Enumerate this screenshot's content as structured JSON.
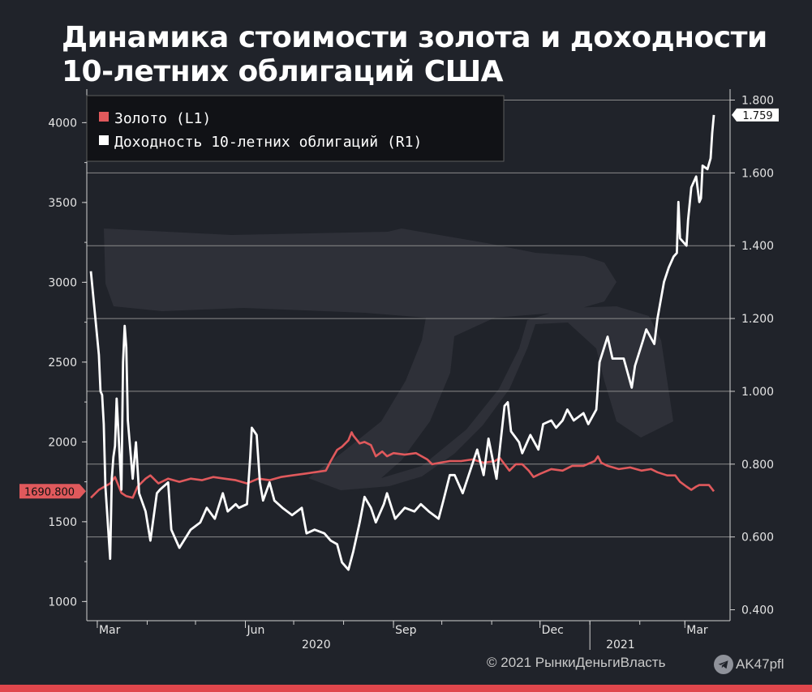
{
  "header": {
    "title_line1": "Динамика стоимости золота и доходности",
    "title_line2": "10-летних облигаций США"
  },
  "footer": {
    "copyright": "© 2021  РынкиДеньгиВласть",
    "handle": "AK47pfl",
    "telegram_icon": "telegram-icon",
    "accent_color": "#e0474c"
  },
  "chart_data": {
    "type": "line",
    "colors": {
      "gold": "#e0595c",
      "yield": "#ffffff",
      "background": "#20232a",
      "grid": "#8a8a8a"
    },
    "legend": {
      "position": "top-left",
      "entries": [
        "Золото (L1)",
        "Доходность 10-летних облигаций (R1)"
      ]
    },
    "x_axis": {
      "start": "2020-02-26",
      "end": "2021-03-19",
      "ticks": [
        "Mar",
        "Jun",
        "Sep",
        "Dec",
        "Mar"
      ],
      "tick_dates": [
        "2020-03-01",
        "2020-06-01",
        "2020-09-01",
        "2020-12-01",
        "2021-03-01"
      ],
      "years": [
        "2020",
        "2021"
      ],
      "year_dates": [
        "2020-07-15",
        "2021-01-20"
      ]
    },
    "y_left": {
      "ticks": [
        "4000",
        "3500",
        "3000",
        "2500",
        "2000",
        "1500",
        "1000"
      ],
      "tick_values": [
        4000,
        3500,
        3000,
        2500,
        2000,
        1500,
        1000
      ],
      "range": [
        880,
        4210
      ],
      "last_value_label": "1690.800",
      "last_value": 1690.8
    },
    "y_right": {
      "ticks": [
        "1.800",
        "1.600",
        "1.400",
        "1.200",
        "1.000",
        "0.800",
        "0.600",
        "0.400"
      ],
      "tick_values": [
        1.8,
        1.6,
        1.4,
        1.2,
        1.0,
        0.8,
        0.6,
        0.4
      ],
      "range": [
        0.37,
        1.83
      ],
      "last_value_label": "1.759",
      "last_value": 1.759
    },
    "grid": true,
    "series": [
      {
        "name": "Золото (L1)",
        "axis": "left",
        "points": [
          [
            "2020-02-26",
            1650
          ],
          [
            "2020-03-02",
            1700
          ],
          [
            "2020-03-09",
            1740
          ],
          [
            "2020-03-12",
            1780
          ],
          [
            "2020-03-16",
            1680
          ],
          [
            "2020-03-19",
            1660
          ],
          [
            "2020-03-23",
            1650
          ],
          [
            "2020-03-26",
            1720
          ],
          [
            "2020-03-31",
            1770
          ],
          [
            "2020-04-03",
            1790
          ],
          [
            "2020-04-08",
            1740
          ],
          [
            "2020-04-14",
            1770
          ],
          [
            "2020-04-21",
            1750
          ],
          [
            "2020-04-28",
            1770
          ],
          [
            "2020-05-05",
            1760
          ],
          [
            "2020-05-12",
            1780
          ],
          [
            "2020-05-19",
            1770
          ],
          [
            "2020-05-26",
            1760
          ],
          [
            "2020-06-02",
            1740
          ],
          [
            "2020-06-09",
            1770
          ],
          [
            "2020-06-16",
            1760
          ],
          [
            "2020-06-23",
            1780
          ],
          [
            "2020-06-30",
            1790
          ],
          [
            "2020-07-07",
            1800
          ],
          [
            "2020-07-14",
            1810
          ],
          [
            "2020-07-21",
            1820
          ],
          [
            "2020-07-24",
            1880
          ],
          [
            "2020-07-28",
            1950
          ],
          [
            "2020-07-31",
            1970
          ],
          [
            "2020-08-04",
            2010
          ],
          [
            "2020-08-06",
            2060
          ],
          [
            "2020-08-07",
            2040
          ],
          [
            "2020-08-11",
            1990
          ],
          [
            "2020-08-14",
            2000
          ],
          [
            "2020-08-18",
            1980
          ],
          [
            "2020-08-21",
            1910
          ],
          [
            "2020-08-25",
            1940
          ],
          [
            "2020-08-28",
            1910
          ],
          [
            "2020-09-01",
            1930
          ],
          [
            "2020-09-08",
            1920
          ],
          [
            "2020-09-15",
            1930
          ],
          [
            "2020-09-22",
            1890
          ],
          [
            "2020-09-25",
            1860
          ],
          [
            "2020-09-30",
            1870
          ],
          [
            "2020-10-06",
            1880
          ],
          [
            "2020-10-13",
            1880
          ],
          [
            "2020-10-20",
            1890
          ],
          [
            "2020-10-27",
            1870
          ],
          [
            "2020-11-03",
            1880
          ],
          [
            "2020-11-06",
            1900
          ],
          [
            "2020-11-09",
            1860
          ],
          [
            "2020-11-12",
            1820
          ],
          [
            "2020-11-16",
            1860
          ],
          [
            "2020-11-20",
            1860
          ],
          [
            "2020-11-24",
            1820
          ],
          [
            "2020-11-27",
            1780
          ],
          [
            "2020-12-01",
            1800
          ],
          [
            "2020-12-08",
            1830
          ],
          [
            "2020-12-15",
            1820
          ],
          [
            "2020-12-21",
            1850
          ],
          [
            "2020-12-28",
            1850
          ],
          [
            "2021-01-04",
            1880
          ],
          [
            "2021-01-06",
            1910
          ],
          [
            "2021-01-08",
            1870
          ],
          [
            "2021-01-12",
            1850
          ],
          [
            "2021-01-19",
            1830
          ],
          [
            "2021-01-26",
            1840
          ],
          [
            "2021-02-02",
            1820
          ],
          [
            "2021-02-08",
            1830
          ],
          [
            "2021-02-12",
            1810
          ],
          [
            "2021-02-18",
            1790
          ],
          [
            "2021-02-23",
            1790
          ],
          [
            "2021-02-26",
            1750
          ],
          [
            "2021-03-02",
            1720
          ],
          [
            "2021-03-05",
            1700
          ],
          [
            "2021-03-08",
            1720
          ],
          [
            "2021-03-10",
            1730
          ],
          [
            "2021-03-12",
            1730
          ],
          [
            "2021-03-16",
            1730
          ],
          [
            "2021-03-19",
            1690.8
          ]
        ]
      },
      {
        "name": "Доходность 10-летних облигаций (R1)",
        "axis": "right",
        "points": [
          [
            "2020-02-26",
            1.33
          ],
          [
            "2020-03-02",
            1.1
          ],
          [
            "2020-03-03",
            1.0
          ],
          [
            "2020-03-04",
            0.99
          ],
          [
            "2020-03-05",
            0.91
          ],
          [
            "2020-03-06",
            0.74
          ],
          [
            "2020-03-09",
            0.54
          ],
          [
            "2020-03-10",
            0.76
          ],
          [
            "2020-03-11",
            0.82
          ],
          [
            "2020-03-12",
            0.85
          ],
          [
            "2020-03-13",
            0.98
          ],
          [
            "2020-03-16",
            0.73
          ],
          [
            "2020-03-17",
            1.08
          ],
          [
            "2020-03-18",
            1.18
          ],
          [
            "2020-03-19",
            1.12
          ],
          [
            "2020-03-20",
            0.92
          ],
          [
            "2020-03-23",
            0.76
          ],
          [
            "2020-03-25",
            0.86
          ],
          [
            "2020-03-27",
            0.72
          ],
          [
            "2020-03-31",
            0.67
          ],
          [
            "2020-04-03",
            0.59
          ],
          [
            "2020-04-07",
            0.72
          ],
          [
            "2020-04-09",
            0.73
          ],
          [
            "2020-04-14",
            0.75
          ],
          [
            "2020-04-16",
            0.62
          ],
          [
            "2020-04-21",
            0.57
          ],
          [
            "2020-04-28",
            0.62
          ],
          [
            "2020-05-04",
            0.64
          ],
          [
            "2020-05-08",
            0.68
          ],
          [
            "2020-05-13",
            0.65
          ],
          [
            "2020-05-18",
            0.72
          ],
          [
            "2020-05-21",
            0.67
          ],
          [
            "2020-05-26",
            0.69
          ],
          [
            "2020-05-28",
            0.68
          ],
          [
            "2020-06-02",
            0.69
          ],
          [
            "2020-06-04",
            0.82
          ],
          [
            "2020-06-05",
            0.9
          ],
          [
            "2020-06-08",
            0.88
          ],
          [
            "2020-06-10",
            0.75
          ],
          [
            "2020-06-12",
            0.7
          ],
          [
            "2020-06-16",
            0.75
          ],
          [
            "2020-06-19",
            0.7
          ],
          [
            "2020-06-24",
            0.68
          ],
          [
            "2020-06-30",
            0.66
          ],
          [
            "2020-07-06",
            0.68
          ],
          [
            "2020-07-09",
            0.61
          ],
          [
            "2020-07-14",
            0.62
          ],
          [
            "2020-07-20",
            0.61
          ],
          [
            "2020-07-24",
            0.59
          ],
          [
            "2020-07-28",
            0.58
          ],
          [
            "2020-07-31",
            0.53
          ],
          [
            "2020-08-04",
            0.51
          ],
          [
            "2020-08-07",
            0.56
          ],
          [
            "2020-08-11",
            0.64
          ],
          [
            "2020-08-14",
            0.71
          ],
          [
            "2020-08-18",
            0.68
          ],
          [
            "2020-08-21",
            0.64
          ],
          [
            "2020-08-26",
            0.69
          ],
          [
            "2020-08-28",
            0.72
          ],
          [
            "2020-09-02",
            0.65
          ],
          [
            "2020-09-08",
            0.68
          ],
          [
            "2020-09-14",
            0.67
          ],
          [
            "2020-09-18",
            0.69
          ],
          [
            "2020-09-23",
            0.67
          ],
          [
            "2020-09-29",
            0.65
          ],
          [
            "2020-10-02",
            0.7
          ],
          [
            "2020-10-06",
            0.77
          ],
          [
            "2020-10-09",
            0.77
          ],
          [
            "2020-10-14",
            0.72
          ],
          [
            "2020-10-20",
            0.8
          ],
          [
            "2020-10-23",
            0.84
          ],
          [
            "2020-10-27",
            0.77
          ],
          [
            "2020-10-30",
            0.87
          ],
          [
            "2020-11-04",
            0.76
          ],
          [
            "2020-11-09",
            0.96
          ],
          [
            "2020-11-11",
            0.97
          ],
          [
            "2020-11-13",
            0.89
          ],
          [
            "2020-11-18",
            0.86
          ],
          [
            "2020-11-20",
            0.83
          ],
          [
            "2020-11-25",
            0.88
          ],
          [
            "2020-11-30",
            0.84
          ],
          [
            "2020-12-03",
            0.91
          ],
          [
            "2020-12-08",
            0.92
          ],
          [
            "2020-12-11",
            0.9
          ],
          [
            "2020-12-15",
            0.92
          ],
          [
            "2020-12-18",
            0.95
          ],
          [
            "2020-12-22",
            0.92
          ],
          [
            "2020-12-28",
            0.94
          ],
          [
            "2020-12-31",
            0.91
          ],
          [
            "2021-01-05",
            0.95
          ],
          [
            "2021-01-07",
            1.08
          ],
          [
            "2021-01-12",
            1.15
          ],
          [
            "2021-01-15",
            1.09
          ],
          [
            "2021-01-19",
            1.09
          ],
          [
            "2021-01-22",
            1.09
          ],
          [
            "2021-01-27",
            1.01
          ],
          [
            "2021-01-29",
            1.07
          ],
          [
            "2021-02-03",
            1.14
          ],
          [
            "2021-02-05",
            1.17
          ],
          [
            "2021-02-10",
            1.13
          ],
          [
            "2021-02-12",
            1.2
          ],
          [
            "2021-02-16",
            1.3
          ],
          [
            "2021-02-19",
            1.34
          ],
          [
            "2021-02-22",
            1.37
          ],
          [
            "2021-02-24",
            1.38
          ],
          [
            "2021-02-25",
            1.52
          ],
          [
            "2021-02-26",
            1.42
          ],
          [
            "2021-03-02",
            1.4
          ],
          [
            "2021-03-03",
            1.47
          ],
          [
            "2021-03-05",
            1.56
          ],
          [
            "2021-03-08",
            1.59
          ],
          [
            "2021-03-10",
            1.52
          ],
          [
            "2021-03-11",
            1.53
          ],
          [
            "2021-03-12",
            1.62
          ],
          [
            "2021-03-15",
            1.61
          ],
          [
            "2021-03-17",
            1.64
          ],
          [
            "2021-03-18",
            1.71
          ],
          [
            "2021-03-19",
            1.759
          ]
        ]
      }
    ]
  }
}
